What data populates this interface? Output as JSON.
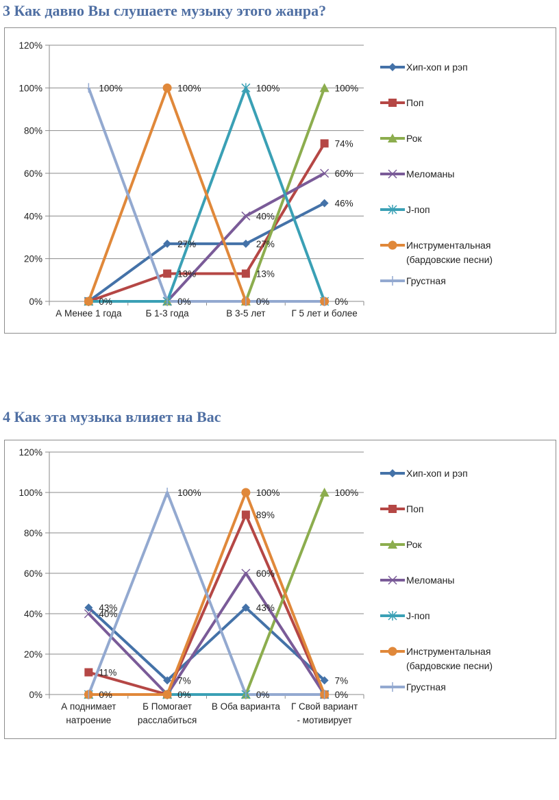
{
  "page": {
    "headings": [
      "3 Как давно Вы слушаете музыку этого жанра?",
      "4 Как эта музыка влияет на Вас"
    ]
  },
  "series_styles": [
    {
      "name": "Хип-хоп и рэп",
      "color": "#4472a8",
      "marker": "diamond"
    },
    {
      "name": "Поп",
      "color": "#b54745",
      "marker": "square"
    },
    {
      "name": "Рок",
      "color": "#8cad4e",
      "marker": "triangle"
    },
    {
      "name": "Меломаны",
      "color": "#7a5b98",
      "marker": "x"
    },
    {
      "name": "J-поп",
      "color": "#3aa0b5",
      "marker": "star"
    },
    {
      "name": "Инструментальная (бардовские песни)",
      "color": "#e0883a",
      "marker": "circle"
    },
    {
      "name": "Грустная",
      "color": "#93a9d0",
      "marker": "plus"
    }
  ],
  "chart_data": [
    {
      "type": "line",
      "title": "3 Как давно Вы слушаете музыку этого жанра?",
      "xlabel": "",
      "ylabel": "",
      "ylim": [
        0,
        120
      ],
      "yticks": [
        "0%",
        "20%",
        "40%",
        "60%",
        "80%",
        "100%",
        "120%"
      ],
      "grid": true,
      "legend": "right",
      "categories": [
        "А Менее 1 года",
        "Б 1-3 года",
        "В 3-5 лет",
        "Г 5 лет и более"
      ],
      "category_lines": [
        [
          "А Менее 1 года"
        ],
        [
          "Б 1-3 года"
        ],
        [
          "В 3-5 лет"
        ],
        [
          "Г 5 лет и более"
        ]
      ],
      "legend_entries": [
        [
          "Хип-хоп и рэп"
        ],
        [
          "Поп"
        ],
        [
          "Рок"
        ],
        [
          "Меломаны"
        ],
        [
          "J-поп"
        ],
        [
          "Инструментальная",
          "(бардовские песни)"
        ],
        [
          "Грустная"
        ]
      ],
      "series": [
        {
          "name": "Хип-хоп и рэп",
          "values": [
            0,
            27,
            27,
            46
          ],
          "labels": [
            "",
            "27%",
            "27%",
            "46%"
          ]
        },
        {
          "name": "Поп",
          "values": [
            0,
            13,
            13,
            74
          ],
          "labels": [
            "",
            "13%",
            "13%",
            "74%"
          ]
        },
        {
          "name": "Рок",
          "values": [
            0,
            0,
            0,
            100
          ],
          "labels": [
            "",
            "",
            "",
            "100%"
          ]
        },
        {
          "name": "Меломаны",
          "values": [
            0,
            0,
            40,
            60
          ],
          "labels": [
            "",
            "",
            "40%",
            "60%"
          ]
        },
        {
          "name": "J-поп",
          "values": [
            0,
            0,
            100,
            0
          ],
          "labels": [
            "",
            "",
            "100%",
            ""
          ]
        },
        {
          "name": "Инструментальная (бардовские песни)",
          "values": [
            0,
            100,
            0,
            0
          ],
          "labels": [
            "0%",
            "100%",
            "0%",
            "0%"
          ]
        },
        {
          "name": "Грустная",
          "values": [
            100,
            0,
            0,
            0
          ],
          "labels": [
            "100%",
            "0%",
            "",
            ""
          ]
        }
      ]
    },
    {
      "type": "line",
      "title": "4 Как эта музыка влияет на Вас",
      "xlabel": "",
      "ylabel": "",
      "ylim": [
        0,
        120
      ],
      "yticks": [
        "0%",
        "20%",
        "40%",
        "60%",
        "80%",
        "100%",
        "120%"
      ],
      "grid": true,
      "legend": "right",
      "categories": [
        "А поднимает натроение",
        "Б Помогает расслабиться",
        "В Оба варианта",
        "Г Свой вариант - мотивирует"
      ],
      "category_lines": [
        [
          "А поднимает",
          "натроение"
        ],
        [
          "Б Помогает",
          "расслабиться"
        ],
        [
          "В Оба варианта"
        ],
        [
          "Г Свой вариант",
          "- мотивирует"
        ]
      ],
      "legend_entries": [
        [
          "Хип-хоп и рэп"
        ],
        [
          "Поп"
        ],
        [
          "Рок"
        ],
        [
          "Меломаны"
        ],
        [
          "J-поп"
        ],
        [
          "Инструментальная",
          "(бардовские песни)"
        ],
        [
          "Грустная"
        ]
      ],
      "series": [
        {
          "name": "Хип-хоп и рэп",
          "values": [
            43,
            7,
            43,
            7
          ],
          "labels": [
            "43%",
            "7%",
            "43%",
            "7%"
          ]
        },
        {
          "name": "Поп",
          "values": [
            11,
            0,
            89,
            0
          ],
          "labels": [
            "11%",
            "",
            "89%",
            ""
          ]
        },
        {
          "name": "Рок",
          "values": [
            0,
            0,
            0,
            100
          ],
          "labels": [
            "",
            "",
            "",
            "100%"
          ]
        },
        {
          "name": "Меломаны",
          "values": [
            40,
            0,
            60,
            0
          ],
          "labels": [
            "40%",
            "",
            "60%",
            ""
          ]
        },
        {
          "name": "J-поп",
          "values": [
            0,
            0,
            0,
            0
          ],
          "labels": [
            "",
            "",
            "",
            ""
          ]
        },
        {
          "name": "Инструментальная (бардовские песни)",
          "values": [
            0,
            0,
            100,
            0
          ],
          "labels": [
            "0%",
            "0%",
            "100%",
            "0%"
          ]
        },
        {
          "name": "Грустная",
          "values": [
            0,
            100,
            0,
            0
          ],
          "labels": [
            "",
            "100%",
            "0%",
            ""
          ]
        }
      ]
    }
  ]
}
